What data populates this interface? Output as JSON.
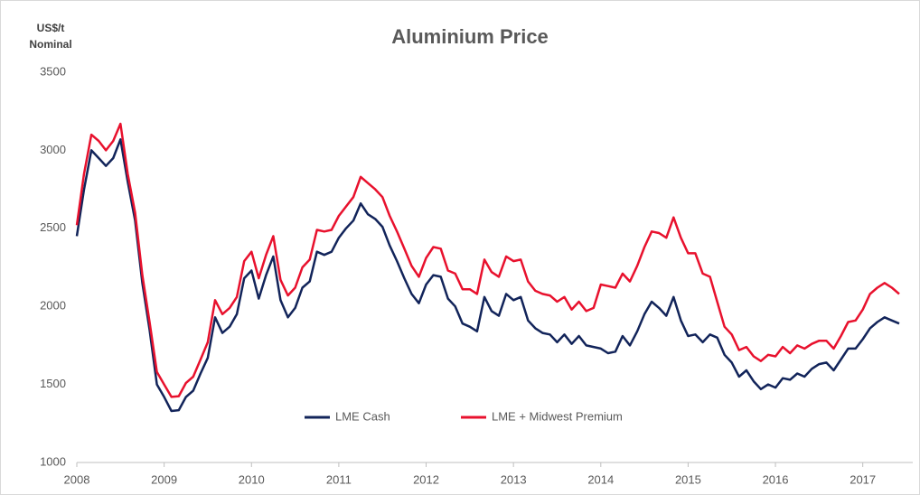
{
  "chart_data": {
    "type": "line",
    "title": "Aluminium Price",
    "ylabel": [
      "US$/t",
      "Nominal"
    ],
    "x": [
      2008,
      2008.083,
      2008.167,
      2008.25,
      2008.333,
      2008.417,
      2008.5,
      2008.583,
      2008.667,
      2008.75,
      2008.833,
      2008.917,
      2009,
      2009.083,
      2009.167,
      2009.25,
      2009.333,
      2009.417,
      2009.5,
      2009.583,
      2009.667,
      2009.75,
      2009.833,
      2009.917,
      2010,
      2010.083,
      2010.167,
      2010.25,
      2010.333,
      2010.417,
      2010.5,
      2010.583,
      2010.667,
      2010.75,
      2010.833,
      2010.917,
      2011,
      2011.083,
      2011.167,
      2011.25,
      2011.333,
      2011.417,
      2011.5,
      2011.583,
      2011.667,
      2011.75,
      2011.833,
      2011.917,
      2012,
      2012.083,
      2012.167,
      2012.25,
      2012.333,
      2012.417,
      2012.5,
      2012.583,
      2012.667,
      2012.75,
      2012.833,
      2012.917,
      2013,
      2013.083,
      2013.167,
      2013.25,
      2013.333,
      2013.417,
      2013.5,
      2013.583,
      2013.667,
      2013.75,
      2013.833,
      2013.917,
      2014,
      2014.083,
      2014.167,
      2014.25,
      2014.333,
      2014.417,
      2014.5,
      2014.583,
      2014.667,
      2014.75,
      2014.833,
      2014.917,
      2015,
      2015.083,
      2015.167,
      2015.25,
      2015.333,
      2015.417,
      2015.5,
      2015.583,
      2015.667,
      2015.75,
      2015.833,
      2015.917,
      2016,
      2016.083,
      2016.167,
      2016.25,
      2016.333,
      2016.417,
      2016.5,
      2016.583,
      2016.667,
      2016.75,
      2016.833,
      2016.917,
      2017,
      2017.083,
      2017.167,
      2017.25,
      2017.333,
      2017.417
    ],
    "series": [
      {
        "name": "LME Cash",
        "color": "#12245a",
        "values": [
          2450,
          2750,
          3000,
          2950,
          2900,
          2950,
          3070,
          2800,
          2550,
          2150,
          1850,
          1500,
          1420,
          1330,
          1335,
          1420,
          1460,
          1570,
          1670,
          1930,
          1830,
          1870,
          1950,
          2180,
          2230,
          2050,
          2200,
          2320,
          2040,
          1930,
          1990,
          2120,
          2160,
          2350,
          2330,
          2350,
          2440,
          2500,
          2550,
          2660,
          2590,
          2560,
          2510,
          2390,
          2290,
          2180,
          2080,
          2020,
          2140,
          2200,
          2190,
          2050,
          2000,
          1890,
          1870,
          1840,
          2060,
          1970,
          1940,
          2080,
          2040,
          2060,
          1910,
          1860,
          1830,
          1820,
          1770,
          1820,
          1760,
          1810,
          1750,
          1740,
          1730,
          1700,
          1710,
          1810,
          1750,
          1840,
          1950,
          2030,
          1990,
          1940,
          2060,
          1910,
          1810,
          1820,
          1770,
          1820,
          1800,
          1690,
          1640,
          1550,
          1590,
          1520,
          1470,
          1500,
          1480,
          1540,
          1530,
          1570,
          1550,
          1600,
          1630,
          1640,
          1590,
          1660,
          1730,
          1730,
          1790,
          1860,
          1900,
          1930,
          1910,
          1890
        ]
      },
      {
        "name": "LME + Midwest Premium",
        "color": "#e8112d",
        "values": [
          2520,
          2850,
          3100,
          3060,
          3000,
          3060,
          3170,
          2850,
          2600,
          2200,
          1900,
          1580,
          1500,
          1420,
          1425,
          1510,
          1550,
          1660,
          1770,
          2040,
          1950,
          1990,
          2060,
          2290,
          2350,
          2180,
          2330,
          2450,
          2170,
          2070,
          2120,
          2250,
          2300,
          2490,
          2480,
          2490,
          2580,
          2640,
          2700,
          2830,
          2790,
          2750,
          2700,
          2580,
          2480,
          2370,
          2260,
          2190,
          2310,
          2380,
          2370,
          2230,
          2210,
          2110,
          2110,
          2080,
          2300,
          2220,
          2190,
          2320,
          2290,
          2300,
          2160,
          2100,
          2080,
          2070,
          2030,
          2060,
          1980,
          2030,
          1970,
          1990,
          2140,
          2130,
          2120,
          2210,
          2160,
          2260,
          2380,
          2480,
          2470,
          2440,
          2570,
          2440,
          2340,
          2340,
          2210,
          2190,
          2030,
          1870,
          1820,
          1720,
          1740,
          1680,
          1650,
          1690,
          1680,
          1740,
          1700,
          1750,
          1730,
          1760,
          1780,
          1780,
          1730,
          1810,
          1900,
          1910,
          1980,
          2080,
          2120,
          2150,
          2120,
          2080
        ]
      }
    ],
    "xlim": [
      2008,
      2017.5
    ],
    "xticks": [
      2008,
      2009,
      2010,
      2011,
      2012,
      2013,
      2014,
      2015,
      2016,
      2017
    ],
    "ylim": [
      1000,
      3500
    ],
    "yticks": [
      1000,
      1500,
      2000,
      2500,
      3000,
      3500
    ],
    "legend": "lower center"
  }
}
